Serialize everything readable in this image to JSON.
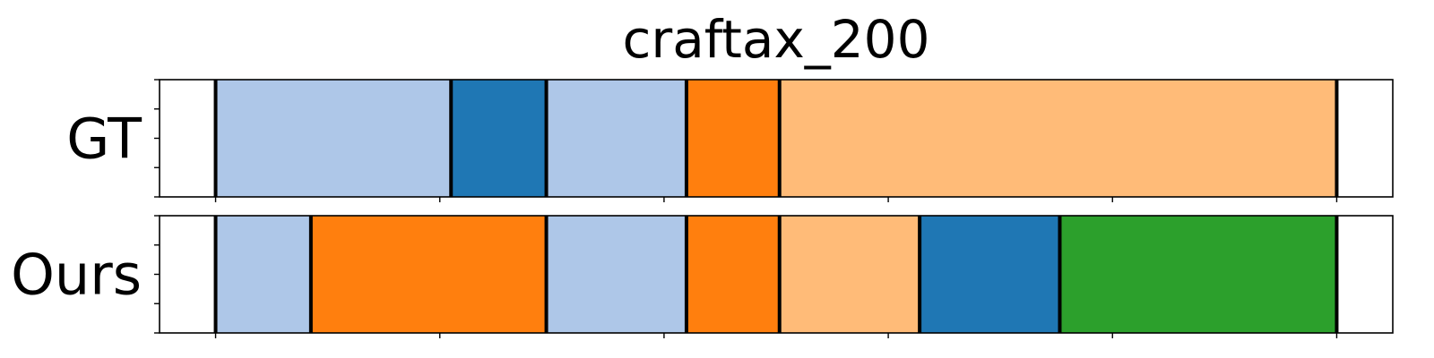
{
  "chart_data": {
    "type": "timeline",
    "title": "craftax_200",
    "rows": [
      {
        "label": "GT",
        "segments": [
          {
            "start": 5,
            "end": 26,
            "color": "#aec7e8"
          },
          {
            "start": 26,
            "end": 34.5,
            "color": "#1f77b4"
          },
          {
            "start": 34.5,
            "end": 47,
            "color": "#aec7e8"
          },
          {
            "start": 47,
            "end": 55.3,
            "color": "#ff7f0e"
          },
          {
            "start": 55.3,
            "end": 105,
            "color": "#ffbb78"
          }
        ]
      },
      {
        "label": "Ours",
        "segments": [
          {
            "start": 5,
            "end": 13.5,
            "color": "#aec7e8"
          },
          {
            "start": 13.5,
            "end": 34.5,
            "color": "#ff7f0e"
          },
          {
            "start": 34.5,
            "end": 47,
            "color": "#aec7e8"
          },
          {
            "start": 47,
            "end": 55.3,
            "color": "#ff7f0e"
          },
          {
            "start": 55.3,
            "end": 67.8,
            "color": "#ffbb78"
          },
          {
            "start": 67.8,
            "end": 80.3,
            "color": "#1f77b4"
          },
          {
            "start": 80.3,
            "end": 105,
            "color": "#2ca02c"
          }
        ]
      }
    ],
    "xlim": [
      0,
      110
    ],
    "xticks": [
      5,
      25,
      45,
      65,
      85,
      105
    ],
    "yticks_per_row": 5,
    "xtick_labels_visible": false,
    "ytick_labels_visible": false,
    "grid": false,
    "legend": false
  }
}
